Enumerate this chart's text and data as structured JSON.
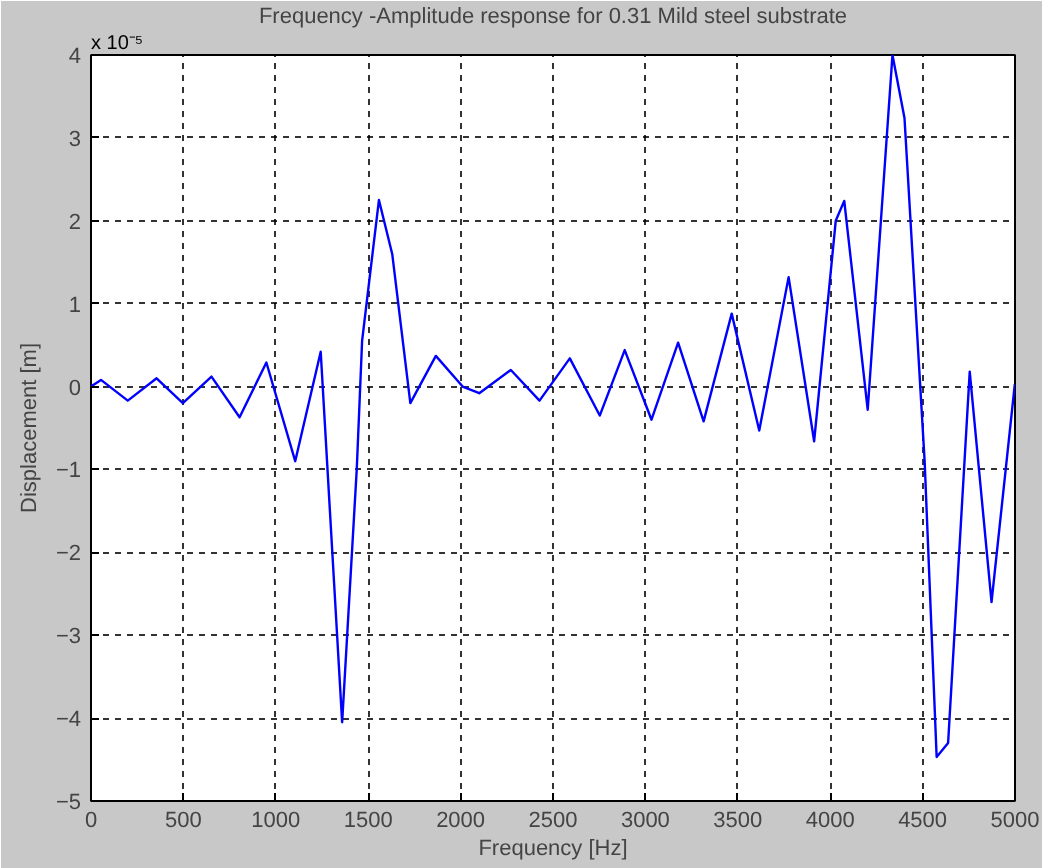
{
  "chart_data": {
    "type": "line",
    "title": "Frequency -Amplitude response for 0.31 Mild steel substrate",
    "xlabel": "Frequency [Hz]",
    "ylabel": "Displacement [m]",
    "annotations": [
      "x 10⁻⁵"
    ],
    "xlim": [
      0,
      5000
    ],
    "ylim": [
      -5,
      4
    ],
    "xticks": [
      0,
      500,
      1000,
      1500,
      2000,
      2500,
      3000,
      3500,
      4000,
      4500,
      5000
    ],
    "yticks": [
      -5,
      -4,
      -3,
      -2,
      -1,
      0,
      1,
      2,
      3,
      4
    ],
    "grid": true,
    "line_style": "solid",
    "marker": "none",
    "series": [
      {
        "color": "#0000ff",
        "x": [
          0,
          54,
          199,
          355,
          497,
          652,
          804,
          949,
          1105,
          1243,
          1359,
          1438,
          1467,
          1558,
          1630,
          1728,
          1866,
          2011,
          2101,
          2272,
          2427,
          2591,
          2753,
          2888,
          3033,
          3177,
          3315,
          3467,
          3616,
          3775,
          3913,
          4030,
          4076,
          4203,
          4337,
          4402,
          4511,
          4576,
          4638,
          4755,
          4873,
          4999
        ],
        "values": [
          0,
          0.08,
          -0.17,
          0.1,
          -0.2,
          0.12,
          -0.37,
          0.29,
          -0.9,
          0.42,
          -4.05,
          -1.0,
          0.55,
          2.25,
          1.6,
          -0.2,
          0.37,
          0,
          -0.08,
          0.2,
          -0.17,
          0.34,
          -0.35,
          0.44,
          -0.4,
          0.53,
          -0.42,
          0.88,
          -0.53,
          1.32,
          -0.66,
          2.0,
          2.24,
          -0.28,
          4.0,
          3.24,
          -0.9,
          -4.47,
          -4.3,
          0.18,
          -2.6,
          0.03
        ]
      }
    ]
  }
}
